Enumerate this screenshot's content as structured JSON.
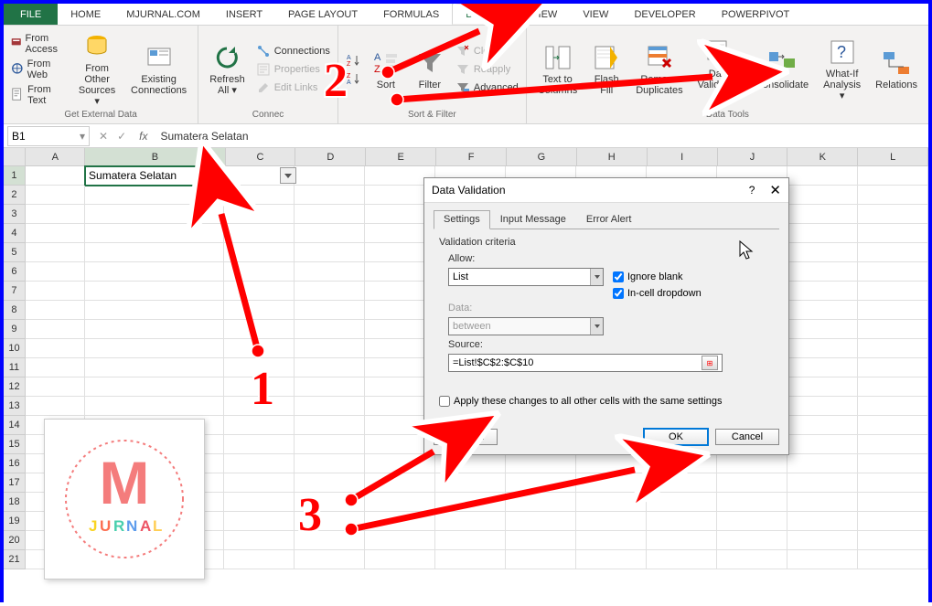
{
  "tabs": {
    "file": "FILE",
    "items": [
      "HOME",
      "MJURNAL.COM",
      "INSERT",
      "PAGE LAYOUT",
      "FORMULAS",
      "DATA",
      "REVIEW",
      "VIEW",
      "DEVELOPER",
      "POWERPIVOT"
    ],
    "active": "DATA"
  },
  "ribbon": {
    "external": {
      "access": "From Access",
      "web": "From Web",
      "text": "From Text",
      "other": "From Other\nSources ▾",
      "existing": "Existing\nConnections",
      "group_label": "Get External Data"
    },
    "connections": {
      "refresh": "Refresh\nAll ▾",
      "conn": "Connections",
      "prop": "Properties",
      "edit": "Edit Links",
      "group_label": "Connections"
    },
    "sortfilter": {
      "az": "A↓Z",
      "za": "Z↓A",
      "sort": "Sort",
      "filter": "Filter",
      "clear": "Clear",
      "reapply": "Reapply",
      "advanced": "Advanced",
      "group_label": "Sort & Filter"
    },
    "datatools": {
      "columns": "Text to\nColumns",
      "flash": "Flash\nFill",
      "dup": "Remove\nDuplicates",
      "validation": "Data\nValidation ▾",
      "consolidate": "Consolidate",
      "whatif": "What-If\nAnalysis ▾",
      "relations": "Relations",
      "group_label": "Data Tools"
    }
  },
  "formula_bar": {
    "name_box": "B1",
    "formula": "Sumatera Selatan"
  },
  "grid": {
    "columns": [
      "A",
      "B",
      "C",
      "D",
      "E",
      "F",
      "G",
      "H",
      "I",
      "J",
      "K",
      "L"
    ],
    "row_count": 21,
    "cell_B1": "Sumatera Selatan",
    "selected_col": "B",
    "selected_row": 1,
    "b_width": 190
  },
  "dialog": {
    "title": "Data Validation",
    "tabs": [
      "Settings",
      "Input Message",
      "Error Alert"
    ],
    "active_tab": "Settings",
    "criteria_label": "Validation criteria",
    "allow_label": "Allow:",
    "allow_value": "List",
    "data_label": "Data:",
    "data_value": "between",
    "source_label": "Source:",
    "source_value": "=List!$C$2:$C$10",
    "ignore_blank": "Ignore blank",
    "in_cell": "In-cell dropdown",
    "apply_same": "Apply these changes to all other cells with the same settings",
    "clear_all": "Clear All",
    "ok": "OK",
    "cancel": "Cancel"
  },
  "annotations": {
    "n1": "1",
    "n2": "2",
    "n3": "3"
  },
  "logo": {
    "top_text": "M",
    "bottom_text": "JURNAL"
  },
  "colors": {
    "brand_green": "#217346",
    "anno_red": "#ff0000",
    "border_blue": "#0000ff",
    "logo_bg": "#f47c7c",
    "logo_y": "#f9d423",
    "logo_r": "#fc6e51",
    "logo_g": "#48cfad",
    "logo_b": "#5d9cec",
    "logo_n": "#ed5565",
    "logo_d": "#ffce54"
  }
}
